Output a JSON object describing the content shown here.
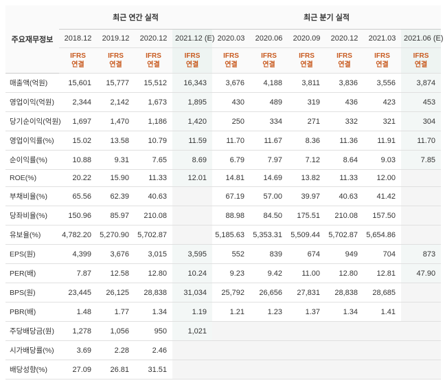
{
  "headers": {
    "rowlabel_title": "주요재무정보",
    "group_annual": "최근 연간 실적",
    "group_quarter": "최근 분기 실적",
    "periods": [
      "2018.12",
      "2019.12",
      "2020.12",
      "2021.12 (E)",
      "2020.03",
      "2020.06",
      "2020.09",
      "2020.12",
      "2021.03",
      "2021.06 (E)"
    ],
    "ifrs_label": "IFRS\n연결"
  },
  "rows": [
    {
      "label": "매출액(억원)",
      "vals": [
        "15,601",
        "15,777",
        "15,512",
        "16,343",
        "3,676",
        "4,188",
        "3,811",
        "3,836",
        "3,556",
        "3,874"
      ]
    },
    {
      "label": "영업이익(억원)",
      "vals": [
        "2,344",
        "2,142",
        "1,673",
        "1,895",
        "430",
        "489",
        "319",
        "436",
        "423",
        "453"
      ]
    },
    {
      "label": "당기순이익(억원)",
      "vals": [
        "1,697",
        "1,470",
        "1,186",
        "1,420",
        "250",
        "334",
        "271",
        "332",
        "321",
        "304"
      ]
    },
    {
      "label": "영업이익률(%)",
      "vals": [
        "15.02",
        "13.58",
        "10.79",
        "11.59",
        "11.70",
        "11.67",
        "8.36",
        "11.36",
        "11.91",
        "11.70"
      ]
    },
    {
      "label": "순이익률(%)",
      "vals": [
        "10.88",
        "9.31",
        "7.65",
        "8.69",
        "6.79",
        "7.97",
        "7.12",
        "8.64",
        "9.03",
        "7.85"
      ]
    },
    {
      "label": "ROE(%)",
      "vals": [
        "20.22",
        "15.90",
        "11.33",
        "12.01",
        "14.81",
        "14.69",
        "13.82",
        "11.33",
        "12.00",
        ""
      ]
    },
    {
      "label": "부채비율(%)",
      "vals": [
        "65.56",
        "62.39",
        "40.63",
        "",
        "67.19",
        "57.00",
        "39.97",
        "40.63",
        "41.42",
        ""
      ]
    },
    {
      "label": "당좌비율(%)",
      "vals": [
        "150.96",
        "85.97",
        "210.08",
        "",
        "88.98",
        "84.50",
        "175.51",
        "210.08",
        "157.50",
        ""
      ]
    },
    {
      "label": "유보율(%)",
      "vals": [
        "4,782.20",
        "5,270.90",
        "5,702.87",
        "",
        "5,185.63",
        "5,353.31",
        "5,509.44",
        "5,702.87",
        "5,654.86",
        ""
      ]
    },
    {
      "label": "EPS(원)",
      "vals": [
        "4,399",
        "3,676",
        "3,015",
        "3,595",
        "552",
        "839",
        "674",
        "949",
        "704",
        "873"
      ]
    },
    {
      "label": "PER(배)",
      "vals": [
        "7.87",
        "12.58",
        "12.80",
        "10.24",
        "9.23",
        "9.42",
        "11.00",
        "12.80",
        "12.81",
        "47.90"
      ]
    },
    {
      "label": "BPS(원)",
      "vals": [
        "23,445",
        "26,125",
        "28,838",
        "31,034",
        "25,792",
        "26,656",
        "27,831",
        "28,838",
        "28,685",
        ""
      ]
    },
    {
      "label": "PBR(배)",
      "vals": [
        "1.48",
        "1.77",
        "1.34",
        "1.19",
        "1.21",
        "1.23",
        "1.37",
        "1.34",
        "1.41",
        ""
      ]
    },
    {
      "label": "주당배당금(원)",
      "vals": [
        "1,278",
        "1,056",
        "950",
        "1,021",
        "",
        "",
        "",
        "",
        "",
        ""
      ]
    },
    {
      "label": "시가배당률(%)",
      "vals": [
        "3.69",
        "2.28",
        "2.46",
        "",
        "",
        "",
        "",
        "",
        "",
        ""
      ]
    },
    {
      "label": "배당성향(%)",
      "vals": [
        "27.09",
        "26.81",
        "31.51",
        "",
        "",
        "",
        "",
        "",
        "",
        ""
      ]
    }
  ],
  "style": {
    "est_cols": [
      3,
      9
    ],
    "col_widths": [
      "78px",
      "55px",
      "55px",
      "55px",
      "58px",
      "55px",
      "55px",
      "55px",
      "55px",
      "55px",
      "58px"
    ]
  }
}
